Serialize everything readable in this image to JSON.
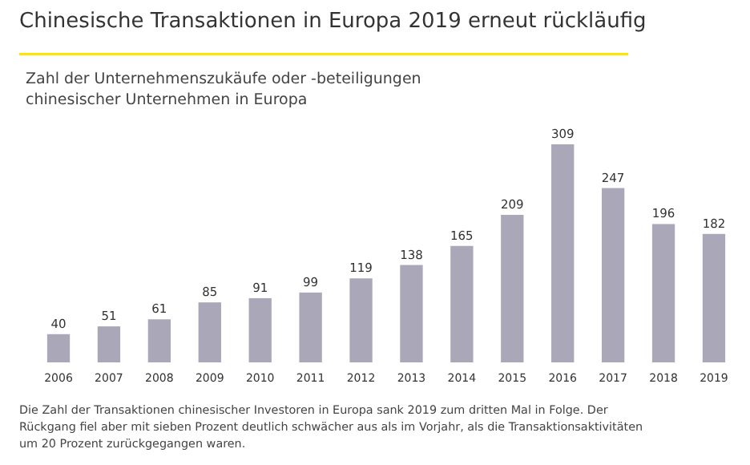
{
  "chart_data": {
    "type": "bar",
    "title": "Chinesische Transaktionen in Europa 2019 erneut rückläufig",
    "subtitle": "Zahl der Unternehmenszukäufe oder -beteiligungen\nchinesischer Unternehmen in Europa",
    "categories": [
      "2006",
      "2007",
      "2008",
      "2009",
      "2010",
      "2011",
      "2012",
      "2013",
      "2014",
      "2015",
      "2016",
      "2017",
      "2018",
      "2019"
    ],
    "values": [
      40,
      51,
      61,
      85,
      91,
      99,
      119,
      138,
      165,
      209,
      309,
      247,
      196,
      182
    ],
    "color": "#a9a7b8",
    "data_labels": true,
    "annotations": [
      "Die Zahl der Transaktionen chinesischer Investoren in Europa sank 2019 zum dritten Mal in Folge. Der\nRückgang fiel aber mit sieben Prozent deutlich schwächer aus als im Vorjahr, als die Transaktionsaktivitäten\num 20 Prozent zurückgegangen waren."
    ]
  }
}
